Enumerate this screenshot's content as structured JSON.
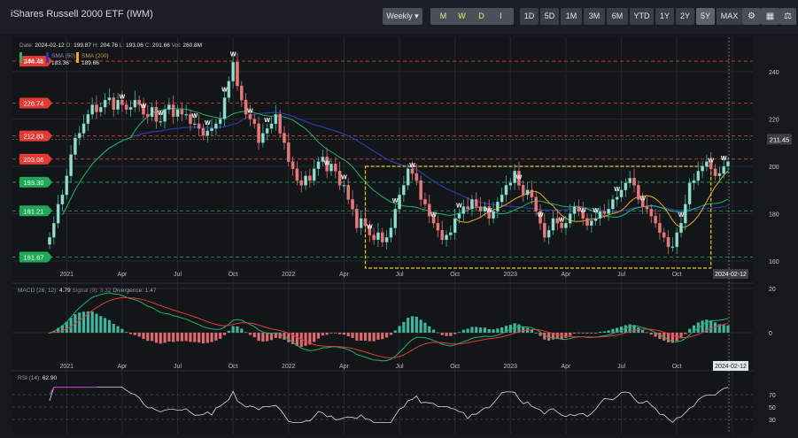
{
  "header": {
    "title": "iShares Russell 2000 ETF (IWM)",
    "interval": "Weekly ▾",
    "indicator_buttons": [
      "M",
      "W",
      "D",
      "I"
    ],
    "ranges": [
      "1D",
      "5D",
      "1M",
      "3M",
      "6M",
      "YTD",
      "1Y",
      "2Y",
      "5Y",
      "MAX"
    ],
    "active_range": "5Y",
    "tool_icons": [
      "settings-icon",
      "calculator-icon",
      "balance-icon"
    ]
  },
  "ohlc": {
    "date_label": "Date:",
    "date": "2024-02-12",
    "o_label": "O:",
    "open": "199.87",
    "h_label": "H:",
    "high": "204.76",
    "l_label": "L:",
    "low": "193.06",
    "c_label": "C:",
    "close": "201.66",
    "v_label": "Vol:",
    "volume": "260.8M"
  },
  "sma_legend": {
    "first_value": "196.72",
    "sma50_label": "SMA (50)",
    "sma50_value": "183.36",
    "sma200_label": "SMA (200)",
    "sma200_value": "189.66"
  },
  "macd_legend": {
    "label": "MACD (26, 12)",
    "value": "4.79",
    "signal_text": "Signal (9): 3.32",
    "divergence_text": "Divergence: 1.47"
  },
  "rsi_legend": {
    "label": "RSI (14):",
    "value": "62.90"
  },
  "crosshair_date": "2024-02-12",
  "colors": {
    "up": "#3fb6a0",
    "down": "#e06a6d",
    "sma50": "#1fb36b",
    "sma200": "#2e39a8",
    "sma_fast": "#f5a623",
    "box": "#f5c518",
    "macd": "#1fb36b",
    "signal": "#e53935"
  },
  "chart_data": [
    {
      "type": "candlestick",
      "x_ticks": [
        "2021",
        "Apr",
        "Jul",
        "Oct",
        "2022",
        "Apr",
        "Jul",
        "Oct",
        "2023",
        "Apr",
        "Jul",
        "Oct",
        "2024"
      ],
      "x_tick_weeks": [
        4,
        17,
        30,
        43,
        56,
        69,
        82,
        95,
        108,
        121,
        134,
        147,
        160
      ],
      "y_ticks": [
        160,
        180,
        200,
        220,
        240
      ],
      "ylim": [
        155,
        250
      ],
      "price_levels": [
        {
          "value": 244.46,
          "label": "244.46",
          "color": "#e53935"
        },
        {
          "value": 226.74,
          "label": "226.74",
          "color": "#e53935"
        },
        {
          "value": 212.83,
          "label": "212.83",
          "color": "#e53935"
        },
        {
          "value": 203.06,
          "label": "203.06",
          "color": "#e53935"
        },
        {
          "value": 193.3,
          "label": "193.30",
          "color": "#1fa855"
        },
        {
          "value": 181.21,
          "label": "181.21",
          "color": "#1fa855"
        },
        {
          "value": 161.67,
          "label": "161.67",
          "color": "#1fa855"
        }
      ],
      "last_price": "211.45",
      "last_price_value": 211.45,
      "box": {
        "x_start": 74,
        "x_end": 155,
        "y_low": 157,
        "y_high": 200
      },
      "w_marker": "W",
      "w_markers": [
        17,
        22,
        26,
        34,
        37,
        41,
        43,
        47,
        51,
        65,
        69,
        75,
        81,
        85,
        90,
        96,
        103,
        110,
        115,
        120,
        125,
        128,
        133,
        139,
        148,
        155,
        158,
        161
      ],
      "closes": [
        170,
        176,
        184,
        188,
        196,
        205,
        212,
        214,
        218,
        222,
        226,
        223,
        225,
        228,
        229,
        224,
        228,
        226,
        224,
        225,
        228,
        226,
        222,
        221,
        225,
        219,
        219,
        224,
        226,
        221,
        224,
        222,
        222,
        218,
        218,
        216,
        213,
        215,
        216,
        218,
        220,
        229,
        236,
        244,
        234,
        228,
        222,
        220,
        218,
        210,
        214,
        216,
        218,
        222,
        214,
        210,
        202,
        199,
        194,
        192,
        196,
        194,
        199,
        202,
        204,
        198,
        201,
        198,
        192,
        192,
        186,
        182,
        174,
        178,
        175,
        171,
        169,
        172,
        168,
        170,
        174,
        182,
        188,
        192,
        199,
        197,
        194,
        186,
        184,
        179,
        176,
        173,
        169,
        171,
        172,
        178,
        180,
        183,
        182,
        186,
        183,
        181,
        183,
        178,
        181,
        185,
        188,
        192,
        193,
        198,
        192,
        188,
        190,
        187,
        181,
        176,
        170,
        173,
        178,
        176,
        174,
        176,
        180,
        183,
        181,
        178,
        175,
        177,
        178,
        181,
        180,
        182,
        186,
        187,
        190,
        193,
        195,
        192,
        186,
        183,
        182,
        179,
        176,
        172,
        170,
        166,
        166,
        172,
        176,
        184,
        193,
        194,
        198,
        200,
        202,
        199,
        196,
        197,
        200,
        202
      ]
    },
    {
      "type": "line",
      "name_ref": "macd",
      "y_ticks": [
        20,
        0
      ],
      "ylim": [
        -22,
        28
      ],
      "note_series": [
        "macd",
        "signal",
        "histogram"
      ]
    },
    {
      "type": "line",
      "name_ref": "rsi",
      "y_ticks": [
        70,
        50,
        30
      ],
      "ylim": [
        20,
        90
      ]
    }
  ]
}
